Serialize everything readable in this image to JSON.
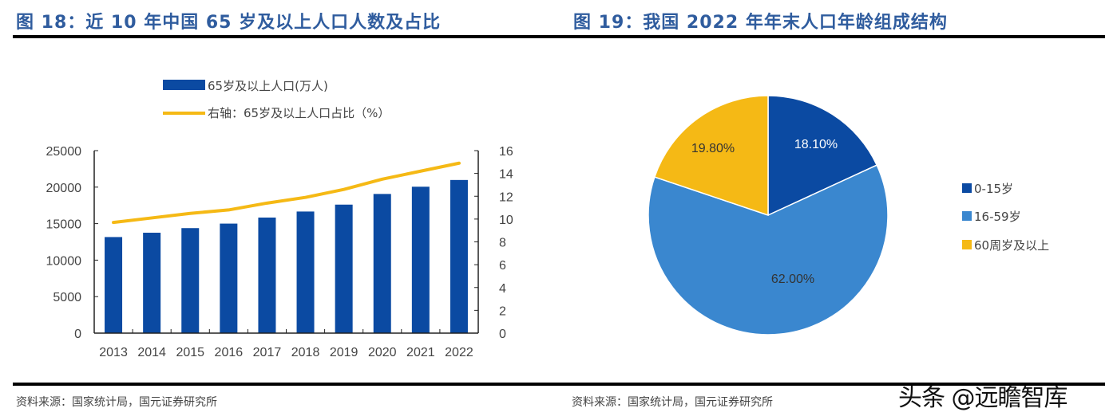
{
  "left": {
    "title": "图 18：近 10 年中国 65 岁及以上人口人数及占比",
    "source": "资料来源：国家统计局，国元证券研究所"
  },
  "right": {
    "title": "图 19：我国 2022 年年末人口年龄组成结构",
    "source": "资料来源：国家统计局，国元证券研究所"
  },
  "watermark": "头条 @远瞻智库",
  "chart_data": [
    {
      "type": "bar+line",
      "categories": [
        "2013",
        "2014",
        "2015",
        "2016",
        "2017",
        "2018",
        "2019",
        "2020",
        "2021",
        "2022"
      ],
      "series": [
        {
          "name": "65岁及以上人口(万人)",
          "type": "bar",
          "axis": "left",
          "color": "#0B4AA2",
          "values": [
            13161,
            13755,
            14386,
            15003,
            15831,
            16658,
            17603,
            19064,
            20056,
            20978
          ]
        },
        {
          "name": "右轴：65岁及以上人口占比（%）",
          "type": "line",
          "axis": "right",
          "color": "#F5B915",
          "values": [
            9.7,
            10.1,
            10.5,
            10.8,
            11.4,
            11.9,
            12.6,
            13.5,
            14.2,
            14.9
          ]
        }
      ],
      "y_left": {
        "range": [
          0,
          25000
        ],
        "ticks": [
          "0",
          "5000",
          "10000",
          "15000",
          "20000",
          "25000"
        ]
      },
      "y_right": {
        "range": [
          0,
          16
        ],
        "ticks": [
          "0",
          "2",
          "4",
          "6",
          "8",
          "10",
          "12",
          "14",
          "16"
        ]
      },
      "legend": "top"
    },
    {
      "type": "pie",
      "slices": [
        {
          "label": "0-15岁",
          "value": 18.1,
          "display": "18.10%",
          "color": "#0B4AA2"
        },
        {
          "label": "16-59岁",
          "value": 62.0,
          "display": "62.00%",
          "color": "#3A87CF"
        },
        {
          "label": "60周岁及以上",
          "value": 19.8,
          "display": "19.80%",
          "color": "#F5B915"
        }
      ],
      "legend": "right"
    }
  ]
}
